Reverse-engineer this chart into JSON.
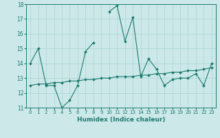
{
  "xlabel": "Humidex (Indice chaleur)",
  "x_values": [
    0,
    1,
    2,
    3,
    4,
    5,
    6,
    7,
    8,
    9,
    10,
    11,
    12,
    13,
    14,
    15,
    16,
    17,
    18,
    19,
    20,
    21,
    22,
    23
  ],
  "line1_y": [
    14,
    15,
    12.5,
    12.5,
    11,
    11.5,
    12.5,
    14.8,
    15.4,
    null,
    17.5,
    17.9,
    15.5,
    17.1,
    13.1,
    14.3,
    13.6,
    12.5,
    12.9,
    13.0,
    13.0,
    13.3,
    12.5,
    14.0
  ],
  "line2_y": [
    12.5,
    12.6,
    12.6,
    12.7,
    12.7,
    12.8,
    12.8,
    12.9,
    12.9,
    13.0,
    13.0,
    13.1,
    13.1,
    13.1,
    13.2,
    13.2,
    13.3,
    13.3,
    13.4,
    13.4,
    13.5,
    13.5,
    13.6,
    13.7
  ],
  "line_color": "#1a7a6e",
  "bg_color": "#cce8e8",
  "grid_color": "#aad4d4",
  "ylim": [
    11,
    18
  ],
  "xlim": [
    -0.5,
    23.5
  ],
  "yticks": [
    11,
    12,
    13,
    14,
    15,
    16,
    17,
    18
  ],
  "xticks": [
    0,
    1,
    2,
    3,
    4,
    5,
    6,
    7,
    8,
    9,
    10,
    11,
    12,
    13,
    14,
    15,
    16,
    17,
    18,
    19,
    20,
    21,
    22,
    23
  ],
  "tick_fontsize": 5.5,
  "xlabel_fontsize": 6.5
}
